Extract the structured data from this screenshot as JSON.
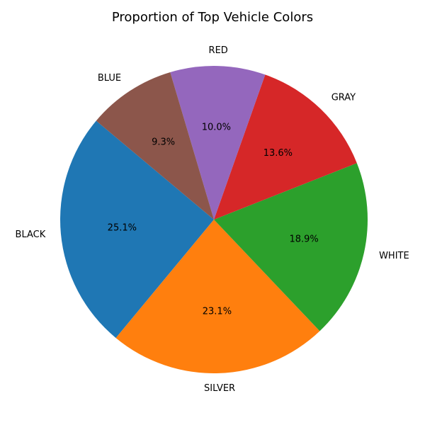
{
  "chart_data": {
    "type": "pie",
    "title": "Proportion of Top Vehicle Colors",
    "start_angle_deg": 140,
    "direction": "counterclockwise",
    "slices": [
      {
        "label": "BLACK",
        "value": 25.1,
        "pct_label": "25.1%",
        "color": "#1f77b4"
      },
      {
        "label": "SILVER",
        "value": 23.1,
        "pct_label": "23.1%",
        "color": "#ff7f0e"
      },
      {
        "label": "WHITE",
        "value": 18.9,
        "pct_label": "18.9%",
        "color": "#2ca02c"
      },
      {
        "label": "GRAY",
        "value": 13.6,
        "pct_label": "13.6%",
        "color": "#d62728"
      },
      {
        "label": "RED",
        "value": 10.0,
        "pct_label": "10.0%",
        "color": "#9467bd"
      },
      {
        "label": "BLUE",
        "value": 9.3,
        "pct_label": "9.3%",
        "color": "#8c564b"
      }
    ]
  }
}
